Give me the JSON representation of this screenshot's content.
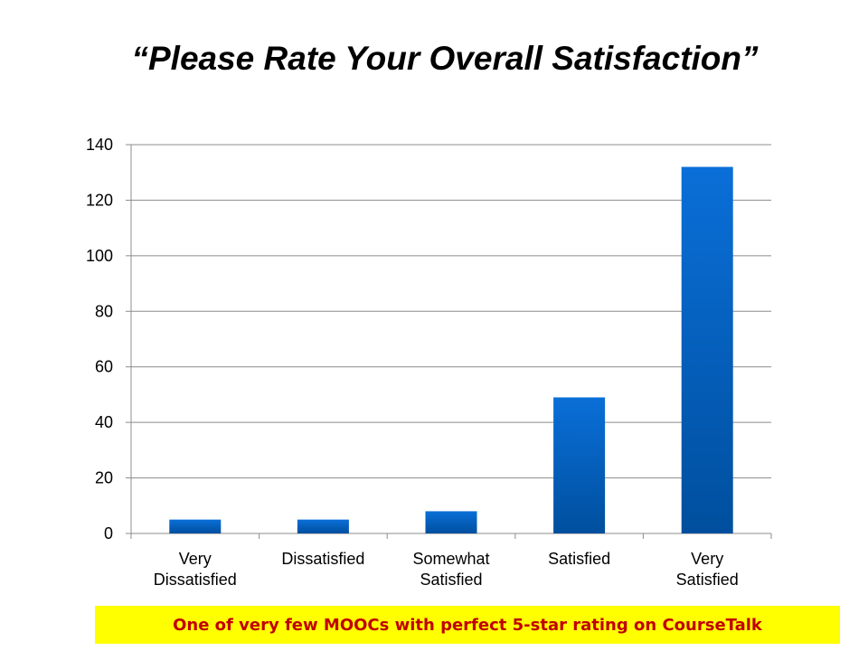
{
  "title": "“Please Rate Your Overall Satisfaction”",
  "banner": "One of very few MOOCs with perfect 5-star rating on CourseTalk",
  "colors": {
    "bar_top": "#0a6fd8",
    "bar_bottom": "#004f9e",
    "banner_bg": "#ffff00",
    "banner_text": "#c00000"
  },
  "chart_data": {
    "type": "bar",
    "title": "“Please Rate Your Overall Satisfaction”",
    "xlabel": "",
    "ylabel": "",
    "categories": [
      [
        "Very",
        "Dissatisfied"
      ],
      [
        "Dissatisfied"
      ],
      [
        "Somewhat",
        "Satisfied"
      ],
      [
        "Satisfied"
      ],
      [
        "Very",
        "Satisfied"
      ]
    ],
    "values": [
      5,
      5,
      8,
      49,
      132
    ],
    "ylim": [
      0,
      140
    ],
    "yticks": [
      0,
      20,
      40,
      60,
      80,
      100,
      120,
      140
    ],
    "grid": true,
    "legend": "none"
  }
}
